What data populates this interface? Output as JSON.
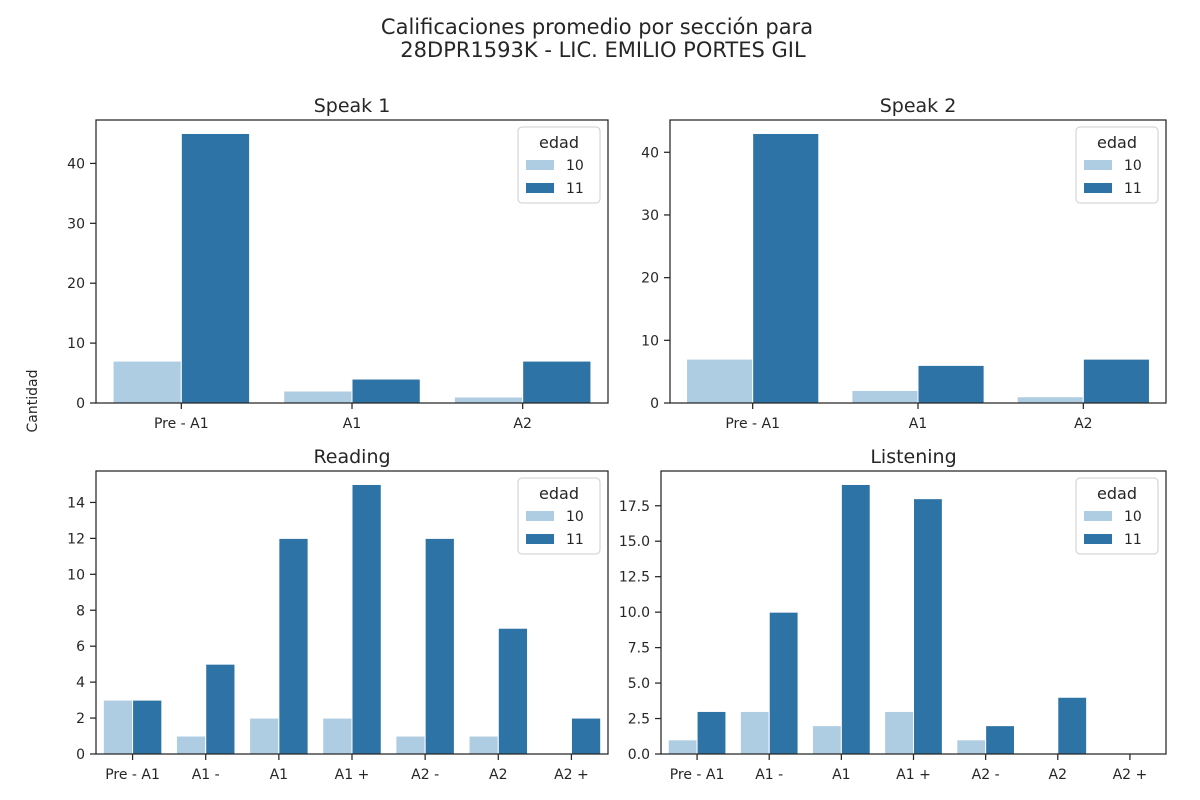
{
  "figure": {
    "title_line1": "Calificaciones promedio por sección para",
    "title_line2": "28DPR1593K - LIC. EMILIO PORTES GIL",
    "ylabel": "Cantidad"
  },
  "colors": {
    "10": "#afcde2",
    "11": "#2e73a5",
    "axis": "#262626",
    "bg": "#ffffff"
  },
  "chart_data": [
    {
      "type": "bar",
      "title": "Speak 1",
      "categories": [
        "Pre - A1",
        "A1",
        "A2"
      ],
      "series": [
        {
          "name": "10",
          "values": [
            7,
            2,
            1
          ]
        },
        {
          "name": "11",
          "values": [
            45,
            4,
            7
          ]
        }
      ],
      "ylim": [
        0,
        47.25
      ],
      "yticks": [
        0,
        10,
        20,
        30,
        40
      ],
      "legend": {
        "title": "edad",
        "placement": "top-right"
      },
      "grid": false
    },
    {
      "type": "bar",
      "title": "Speak 2",
      "categories": [
        "Pre - A1",
        "A1",
        "A2"
      ],
      "series": [
        {
          "name": "10",
          "values": [
            7,
            2,
            1
          ]
        },
        {
          "name": "11",
          "values": [
            43,
            6,
            7
          ]
        }
      ],
      "ylim": [
        0,
        45.15
      ],
      "yticks": [
        0,
        10,
        20,
        30,
        40
      ],
      "legend": {
        "title": "edad",
        "placement": "top-right"
      },
      "grid": false
    },
    {
      "type": "bar",
      "title": "Reading",
      "categories": [
        "Pre - A1",
        "A1 -",
        "A1",
        "A1 +",
        "A2 -",
        "A2",
        "A2 +"
      ],
      "series": [
        {
          "name": "10",
          "values": [
            3,
            1,
            2,
            2,
            1,
            1,
            0
          ]
        },
        {
          "name": "11",
          "values": [
            3,
            5,
            12,
            15,
            12,
            7,
            2
          ]
        }
      ],
      "ylim": [
        0,
        15.75
      ],
      "yticks": [
        0,
        2,
        4,
        6,
        8,
        10,
        12,
        14
      ],
      "legend": {
        "title": "edad",
        "placement": "top-right"
      },
      "grid": false
    },
    {
      "type": "bar",
      "title": "Listening",
      "categories": [
        "Pre - A1",
        "A1 -",
        "A1",
        "A1 +",
        "A2 -",
        "A2",
        "A2 +"
      ],
      "series": [
        {
          "name": "10",
          "values": [
            1,
            3,
            2,
            3,
            1,
            0,
            0
          ]
        },
        {
          "name": "11",
          "values": [
            3,
            10,
            19,
            18,
            2,
            4,
            0
          ]
        }
      ],
      "ylim": [
        0,
        19.95
      ],
      "yticks": [
        0.0,
        2.5,
        5.0,
        7.5,
        10.0,
        12.5,
        15.0,
        17.5
      ],
      "ytick_labels": [
        "0.0",
        "2.5",
        "5.0",
        "7.5",
        "10.0",
        "12.5",
        "15.0",
        "17.5"
      ],
      "legend": {
        "title": "edad",
        "placement": "top-right"
      },
      "grid": false
    }
  ]
}
